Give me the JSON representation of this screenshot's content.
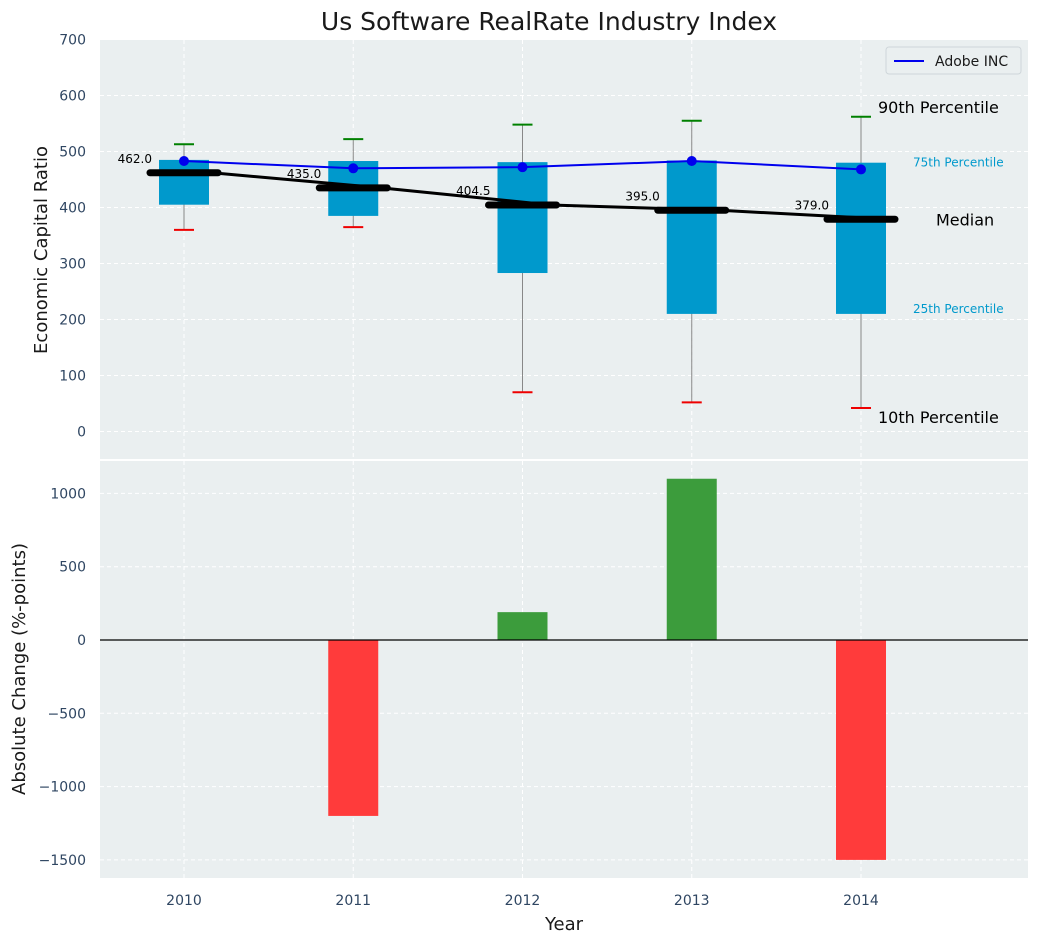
{
  "chart_data": [
    {
      "type": "box",
      "title": "Us Software RealRate Industry Index",
      "xlabel": "",
      "ylabel": "Economic Capital Ratio",
      "ylim": [
        -50,
        700
      ],
      "yticks": [
        0,
        100,
        200,
        300,
        400,
        500,
        600,
        700
      ],
      "categories": [
        "2010",
        "2011",
        "2012",
        "2013",
        "2014"
      ],
      "p10": [
        360,
        365,
        70,
        52,
        42
      ],
      "p25": [
        405,
        385,
        283,
        210,
        210
      ],
      "median": [
        462.0,
        435.0,
        404.5,
        395.0,
        379.0
      ],
      "median_labels": [
        "462.0",
        "435.0",
        "404.5",
        "395.0",
        "379.0"
      ],
      "p75": [
        485,
        483,
        481,
        484,
        480
      ],
      "p90": [
        513,
        522,
        548,
        555,
        562
      ],
      "series": [
        {
          "name": "Adobe INC",
          "values": [
            483,
            470,
            472,
            483,
            468
          ],
          "color": "#0000ee"
        }
      ],
      "annotations": {
        "p90": "90th Percentile",
        "p75": "75th Percentile",
        "median": "Median",
        "p25": "25th Percentile",
        "p10": "10th Percentile"
      },
      "colors": {
        "box": "#0099cc",
        "median": "#000000",
        "p90_cap": "#008000",
        "p10_cap": "#ee0000",
        "background": "#eaeff0"
      },
      "grid": true,
      "legend": "top-right"
    },
    {
      "type": "bar",
      "xlabel": "Year",
      "ylabel": "Absolute Change (%-points)",
      "ylim": [
        -1620,
        1230
      ],
      "yticks": [
        -1500,
        -1000,
        -500,
        0,
        500,
        1000
      ],
      "ytick_labels": [
        "−1500",
        "−1000",
        "−500",
        "0",
        "500",
        "1000"
      ],
      "categories": [
        "2010",
        "2011",
        "2012",
        "2013",
        "2014"
      ],
      "values": [
        0,
        -1200,
        190,
        1100,
        -1500
      ],
      "colors": {
        "positive": "#3c9c3c",
        "negative": "#ff3b3b",
        "zero_line": "#000000"
      },
      "grid": true
    }
  ]
}
